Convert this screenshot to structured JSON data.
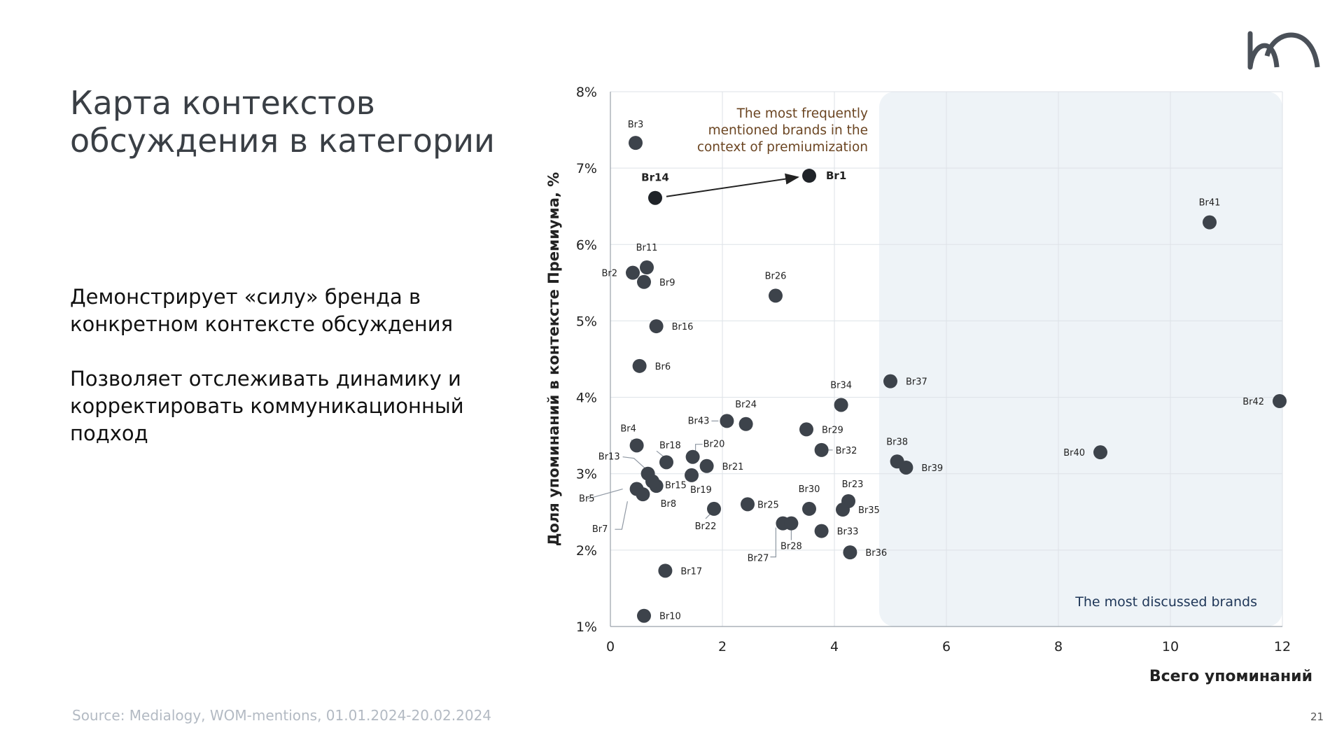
{
  "slide": {
    "title": "Карта контекстов\nобсуждения в категории",
    "desc1": "Демонстрирует «силу» бренда в\nконкретном контексте обсуждения",
    "desc2": "Позволяет отслеживать динамику и\nкорректировать коммуникационный\nподход",
    "source": "Source: Medialogy, WOM-mentions, 01.01.2024-20.02.2024",
    "page_number": "21"
  },
  "colors": {
    "point": "#3d434b",
    "highlight_point": "#1f2328",
    "zone_fill": "#eef3f7",
    "annotation_brown": "#6b4522",
    "annotation_navy": "#1d3557",
    "grid": "#dde2e7",
    "logo": "#4a5058"
  },
  "chart_data": {
    "type": "scatter",
    "xlabel": "Всего упоминаний",
    "ylabel": "Доля упоминаний в контексте Премиума, %",
    "xlim": [
      0,
      12
    ],
    "ylim": [
      1,
      8
    ],
    "xticks": [
      0,
      2,
      4,
      6,
      8,
      10,
      12
    ],
    "yticks": [
      1,
      2,
      3,
      4,
      5,
      6,
      7,
      8
    ],
    "ytick_suffix": "%",
    "grid": true,
    "zone_label": "The most discussed brands",
    "annotation": "The most frequently\nmentioned brands in the\ncontext of premiumization",
    "arrow": {
      "from": "Br14",
      "to": "Br1"
    },
    "points": [
      {
        "label": "Br1",
        "x": 3.55,
        "y": 6.9,
        "highlight": true
      },
      {
        "label": "Br2",
        "x": 0.4,
        "y": 5.63
      },
      {
        "label": "Br3",
        "x": 0.45,
        "y": 7.33
      },
      {
        "label": "Br4",
        "x": 0.47,
        "y": 3.37
      },
      {
        "label": "Br5",
        "x": 0.47,
        "y": 2.8
      },
      {
        "label": "Br6",
        "x": 0.52,
        "y": 4.41
      },
      {
        "label": "Br7",
        "x": 0.58,
        "y": 2.73
      },
      {
        "label": "Br8",
        "x": 0.82,
        "y": 2.84
      },
      {
        "label": "Br9",
        "x": 0.6,
        "y": 5.51
      },
      {
        "label": "Br10",
        "x": 0.6,
        "y": 1.14
      },
      {
        "label": "Br11",
        "x": 0.65,
        "y": 5.7
      },
      {
        "label": "Br13",
        "x": 0.67,
        "y": 3.0
      },
      {
        "label": "Br14",
        "x": 0.8,
        "y": 6.61,
        "highlight": true
      },
      {
        "label": "Br15",
        "x": 0.75,
        "y": 2.9
      },
      {
        "label": "Br16",
        "x": 0.82,
        "y": 4.93
      },
      {
        "label": "Br17",
        "x": 0.98,
        "y": 1.73
      },
      {
        "label": "Br18",
        "x": 1.0,
        "y": 3.15
      },
      {
        "label": "Br19",
        "x": 1.45,
        "y": 2.98
      },
      {
        "label": "Br20",
        "x": 1.47,
        "y": 3.22
      },
      {
        "label": "Br21",
        "x": 1.72,
        "y": 3.1
      },
      {
        "label": "Br22",
        "x": 1.85,
        "y": 2.54
      },
      {
        "label": "Br43",
        "x": 2.08,
        "y": 3.69
      },
      {
        "label": "Br24",
        "x": 2.42,
        "y": 3.65
      },
      {
        "label": "Br25",
        "x": 2.45,
        "y": 2.6
      },
      {
        "label": "Br26",
        "x": 2.95,
        "y": 5.33
      },
      {
        "label": "Br27",
        "x": 3.08,
        "y": 2.35
      },
      {
        "label": "Br28",
        "x": 3.23,
        "y": 2.35
      },
      {
        "label": "Br29",
        "x": 3.5,
        "y": 3.58
      },
      {
        "label": "Br30",
        "x": 3.55,
        "y": 2.54
      },
      {
        "label": "Br32",
        "x": 3.77,
        "y": 3.31
      },
      {
        "label": "Br33",
        "x": 3.77,
        "y": 2.25
      },
      {
        "label": "Br34",
        "x": 4.12,
        "y": 3.9
      },
      {
        "label": "Br35",
        "x": 4.15,
        "y": 2.53
      },
      {
        "label": "Br23",
        "x": 4.25,
        "y": 2.64
      },
      {
        "label": "Br36",
        "x": 4.28,
        "y": 1.97
      },
      {
        "label": "Br37",
        "x": 5.0,
        "y": 4.21
      },
      {
        "label": "Br38",
        "x": 5.12,
        "y": 3.16
      },
      {
        "label": "Br39",
        "x": 5.28,
        "y": 3.08
      },
      {
        "label": "Br40",
        "x": 8.75,
        "y": 3.28
      },
      {
        "label": "Br41",
        "x": 10.7,
        "y": 6.29
      },
      {
        "label": "Br42",
        "x": 11.95,
        "y": 3.95
      }
    ]
  }
}
